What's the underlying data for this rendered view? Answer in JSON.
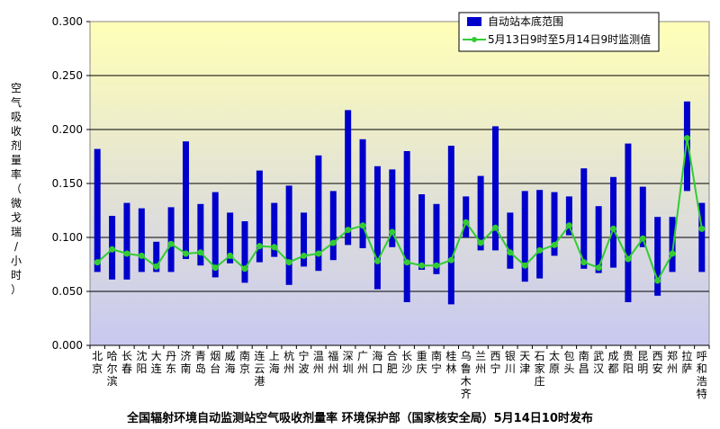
{
  "chart_data": {
    "type": "bar",
    "caption": "全国辐射环境自动监测站空气吸收剂量率  环境保护部（国家核安全局）5月14日10时发布",
    "ylabel": "空气吸收剂量率（微戈瑞/小时）",
    "ylim": [
      0,
      0.3
    ],
    "yticks": [
      "0.000",
      "0.050",
      "0.100",
      "0.150",
      "0.200",
      "0.250",
      "0.300"
    ],
    "ytick_values": [
      0,
      0.05,
      0.1,
      0.15,
      0.2,
      0.25,
      0.3
    ],
    "grid": true,
    "legend_position": "top-right",
    "colors": {
      "bar": "#0000cc",
      "line": "#33cc33",
      "marker": "#33cc33",
      "bg_top": "#ffffb8",
      "bg_bottom": "#c8c8f0"
    },
    "categories": [
      "北京",
      "哈尔滨",
      "长春",
      "沈阳",
      "大连",
      "丹东",
      "济南",
      "青岛",
      "烟台",
      "威海",
      "南京",
      "连云港",
      "上海",
      "杭州",
      "宁波",
      "温州",
      "福州",
      "深圳",
      "广州",
      "海口",
      "合肥",
      "长沙",
      "重庆",
      "南宁",
      "桂林",
      "乌鲁木齐",
      "兰州",
      "西宁",
      "银川",
      "天津",
      "石家庄",
      "太原",
      "包头",
      "南昌",
      "武汉",
      "成都",
      "贵阳",
      "昆明",
      "西安",
      "郑州",
      "拉萨",
      "呼和浩特"
    ],
    "series": [
      {
        "name": "自动站本底范围",
        "kind": "range",
        "low": [
          0.068,
          0.061,
          0.061,
          0.068,
          0.068,
          0.068,
          0.08,
          0.074,
          0.063,
          0.076,
          0.058,
          0.077,
          0.082,
          0.056,
          0.073,
          0.069,
          0.079,
          0.093,
          0.09,
          0.052,
          0.091,
          0.04,
          0.07,
          0.066,
          0.038,
          0.1,
          0.088,
          0.088,
          0.071,
          0.059,
          0.062,
          0.083,
          0.102,
          0.071,
          0.067,
          0.072,
          0.04,
          0.091,
          0.046,
          0.068,
          0.143,
          0.068
        ],
        "high": [
          0.182,
          0.12,
          0.132,
          0.127,
          0.096,
          0.128,
          0.189,
          0.131,
          0.142,
          0.123,
          0.115,
          0.162,
          0.132,
          0.148,
          0.123,
          0.176,
          0.143,
          0.218,
          0.191,
          0.166,
          0.163,
          0.18,
          0.14,
          0.131,
          0.185,
          0.138,
          0.157,
          0.203,
          0.123,
          0.143,
          0.144,
          0.142,
          0.138,
          0.164,
          0.129,
          0.156,
          0.187,
          0.147,
          0.119,
          0.119,
          0.226,
          0.132
        ]
      },
      {
        "name": "5月13日9时至5月14日9时监测值",
        "kind": "line",
        "values": [
          0.077,
          0.089,
          0.085,
          0.083,
          0.073,
          0.094,
          0.085,
          0.086,
          0.072,
          0.083,
          0.071,
          0.092,
          0.091,
          0.077,
          0.083,
          0.085,
          0.095,
          0.107,
          0.111,
          0.078,
          0.105,
          0.077,
          0.074,
          0.074,
          0.079,
          0.114,
          0.095,
          0.109,
          0.086,
          0.074,
          0.088,
          0.093,
          0.111,
          0.077,
          0.072,
          0.108,
          0.08,
          0.099,
          0.06,
          0.085,
          0.192,
          0.108
        ]
      }
    ]
  }
}
